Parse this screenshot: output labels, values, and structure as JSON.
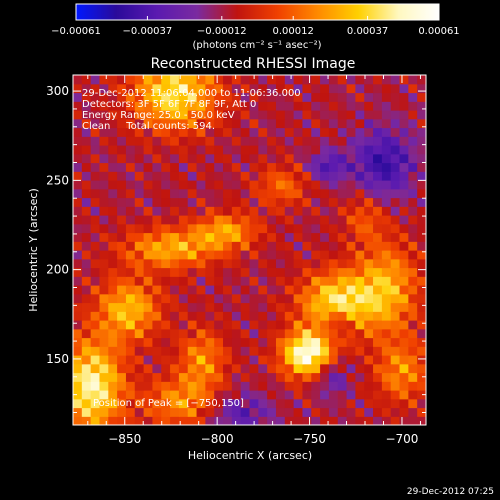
{
  "chart_data": {
    "type": "heatmap",
    "title": "Reconstructed RHESSI Image",
    "xlabel": "Heliocentric X (arcsec)",
    "ylabel": "Heliocentric Y (arcsec)",
    "xlim": [
      -878,
      -687
    ],
    "ylim": [
      113,
      309
    ],
    "x_ticks": [
      -850,
      -800,
      -750,
      -700
    ],
    "x_tick_labels": [
      "−850",
      "−800",
      "−750",
      "−700"
    ],
    "y_ticks": [
      150,
      200,
      250,
      300
    ],
    "y_tick_labels": [
      "150",
      "200",
      "250",
      "300"
    ],
    "colorbar": {
      "range": [
        -0.00061,
        0.00061
      ],
      "ticks": [
        -0.00061,
        -0.00037,
        -0.00012,
        0.00012,
        0.00037,
        0.00061
      ],
      "tick_labels": [
        "−0.00061",
        "−0.00037",
        "−0.00012",
        "0.00012",
        "0.00037",
        "0.00061"
      ],
      "label": "(photons cm⁻² s⁻¹ asec⁻²)",
      "colors": [
        "#0018ff",
        "#2a0a9a",
        "#5a1ab0",
        "#7a2aa0",
        "#c0140f",
        "#f04000",
        "#ff8a00",
        "#ffd000",
        "#fff8c0",
        "#ffffff"
      ]
    },
    "sources": [
      {
        "x": -751,
        "y": 153,
        "strength": 1.0,
        "sx": 10,
        "sy": 9
      },
      {
        "x": -735,
        "y": 182,
        "strength": 0.75,
        "sx": 14,
        "sy": 12
      },
      {
        "x": -708,
        "y": 190,
        "strength": 0.55,
        "sx": 12,
        "sy": 18
      },
      {
        "x": -868,
        "y": 135,
        "strength": 0.85,
        "sx": 12,
        "sy": 18
      },
      {
        "x": -848,
        "y": 178,
        "strength": 0.6,
        "sx": 12,
        "sy": 12
      },
      {
        "x": -825,
        "y": 212,
        "strength": 0.55,
        "sx": 18,
        "sy": 8
      },
      {
        "x": -795,
        "y": 222,
        "strength": 0.5,
        "sx": 12,
        "sy": 7
      },
      {
        "x": -823,
        "y": 299,
        "strength": 0.75,
        "sx": 16,
        "sy": 14
      },
      {
        "x": -808,
        "y": 150,
        "strength": 0.45,
        "sx": 9,
        "sy": 12
      },
      {
        "x": -820,
        "y": 126,
        "strength": 0.45,
        "sx": 14,
        "sy": 10
      },
      {
        "x": -700,
        "y": 143,
        "strength": 0.45,
        "sx": 10,
        "sy": 12
      },
      {
        "x": -765,
        "y": 247,
        "strength": 0.35,
        "sx": 10,
        "sy": 8
      },
      {
        "x": -720,
        "y": 230,
        "strength": 0.3,
        "sx": 8,
        "sy": 10
      },
      {
        "x": -740,
        "y": 258,
        "strength": -0.4,
        "sx": 7,
        "sy": 6
      },
      {
        "x": -738,
        "y": 141,
        "strength": -0.35,
        "sx": 7,
        "sy": 8
      },
      {
        "x": -710,
        "y": 260,
        "strength": -0.5,
        "sx": 12,
        "sy": 14
      },
      {
        "x": -788,
        "y": 120,
        "strength": -0.35,
        "sx": 12,
        "sy": 8
      },
      {
        "x": -735,
        "y": 170,
        "strength": -0.35,
        "sx": 6,
        "sy": 6
      }
    ],
    "peak_position": [
      -750,
      150
    ]
  },
  "annotations": {
    "time_range": "29-Dec-2012 11:06:04.000 to 11:06:36.000",
    "detectors": "Detectors: 3F 5F 6F 7F 8F 9F, Att 0",
    "energy_range": "Energy Range: 25.0 - 50.0 keV",
    "method_counts": "Clean     Total counts: 594.",
    "peak_text": "Position of Peak = [−750,150]"
  },
  "footer": {
    "timestamp": "29-Dec-2012 07:25"
  }
}
